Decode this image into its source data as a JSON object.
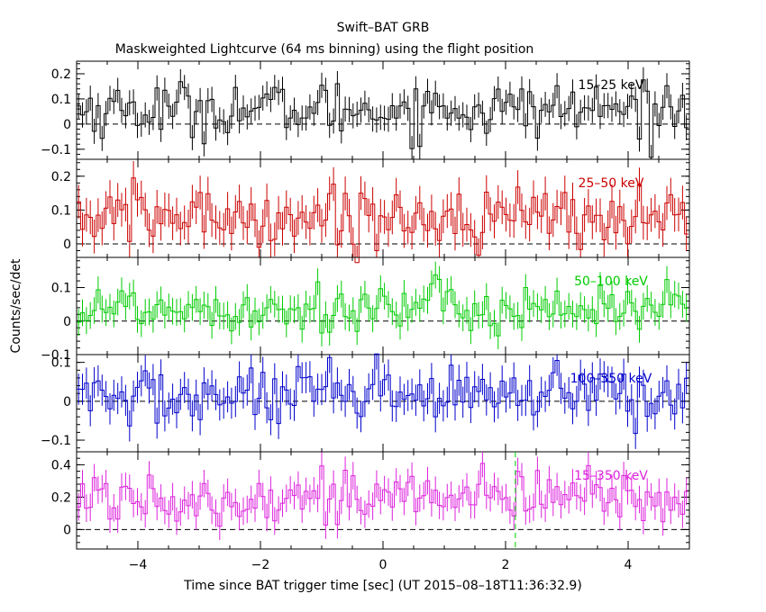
{
  "figure": {
    "title": "Swift–BAT GRB",
    "subtitle": "Maskweighted Lightcurve (64 ms binning) using the flight position",
    "xlabel": "Time since BAT trigger time [sec] (UT 2015–08–18T11:36:32.9)",
    "ylabel": "Counts/sec/det",
    "xlim": [
      -5,
      5
    ],
    "x_ticks": [
      -4,
      -2,
      0,
      2,
      4
    ],
    "x_tick_labels": [
      "−4",
      "−2",
      "0",
      "2",
      "4"
    ],
    "trigger_marker_x": 2.16
  },
  "chart_data": [
    {
      "type": "line",
      "band": "15–25 keV",
      "color": "#000000",
      "ylim": [
        -0.14,
        0.25
      ],
      "yticks": [
        -0.1,
        0,
        0.1,
        0.2
      ],
      "ytick_labels": [
        "−0.1",
        "0",
        "0.1",
        "0.2"
      ],
      "x_start": -5.0,
      "bin_width": 0.064,
      "mean": 0.06,
      "noise": 0.055,
      "err": 0.05
    },
    {
      "type": "line",
      "band": "25–50 keV",
      "color": "#cc0000",
      "ylim": [
        -0.04,
        0.25
      ],
      "yticks": [
        0,
        0.1,
        0.2
      ],
      "ytick_labels": [
        "0",
        "0.1",
        "0.2"
      ],
      "x_start": -5.0,
      "bin_width": 0.064,
      "mean": 0.08,
      "noise": 0.045,
      "err": 0.05
    },
    {
      "type": "line",
      "band": "50–100 keV",
      "color": "#00cc00",
      "ylim": [
        -0.1,
        0.19
      ],
      "yticks": [
        -0.1,
        0,
        0.1
      ],
      "ytick_labels": [
        "−0.1",
        "0",
        "0.1"
      ],
      "x_start": -5.0,
      "bin_width": 0.064,
      "mean": 0.04,
      "noise": 0.038,
      "err": 0.04
    },
    {
      "type": "line",
      "band": "100–350 keV",
      "color": "#0000cc",
      "ylim": [
        -0.13,
        0.12
      ],
      "yticks": [
        -0.1,
        0,
        0.1
      ],
      "ytick_labels": [
        "−0.1",
        "0",
        "0.1"
      ],
      "x_start": -5.0,
      "bin_width": 0.064,
      "mean": 0.01,
      "noise": 0.04,
      "err": 0.04
    },
    {
      "type": "line",
      "band": "15–350 keV",
      "color": "#dd22dd",
      "ylim": [
        -0.12,
        0.48
      ],
      "yticks": [
        0,
        0.2,
        0.4
      ],
      "ytick_labels": [
        "0",
        "0.2",
        "0.4"
      ],
      "x_start": -5.0,
      "bin_width": 0.064,
      "mean": 0.2,
      "noise": 0.08,
      "err": 0.085
    }
  ]
}
